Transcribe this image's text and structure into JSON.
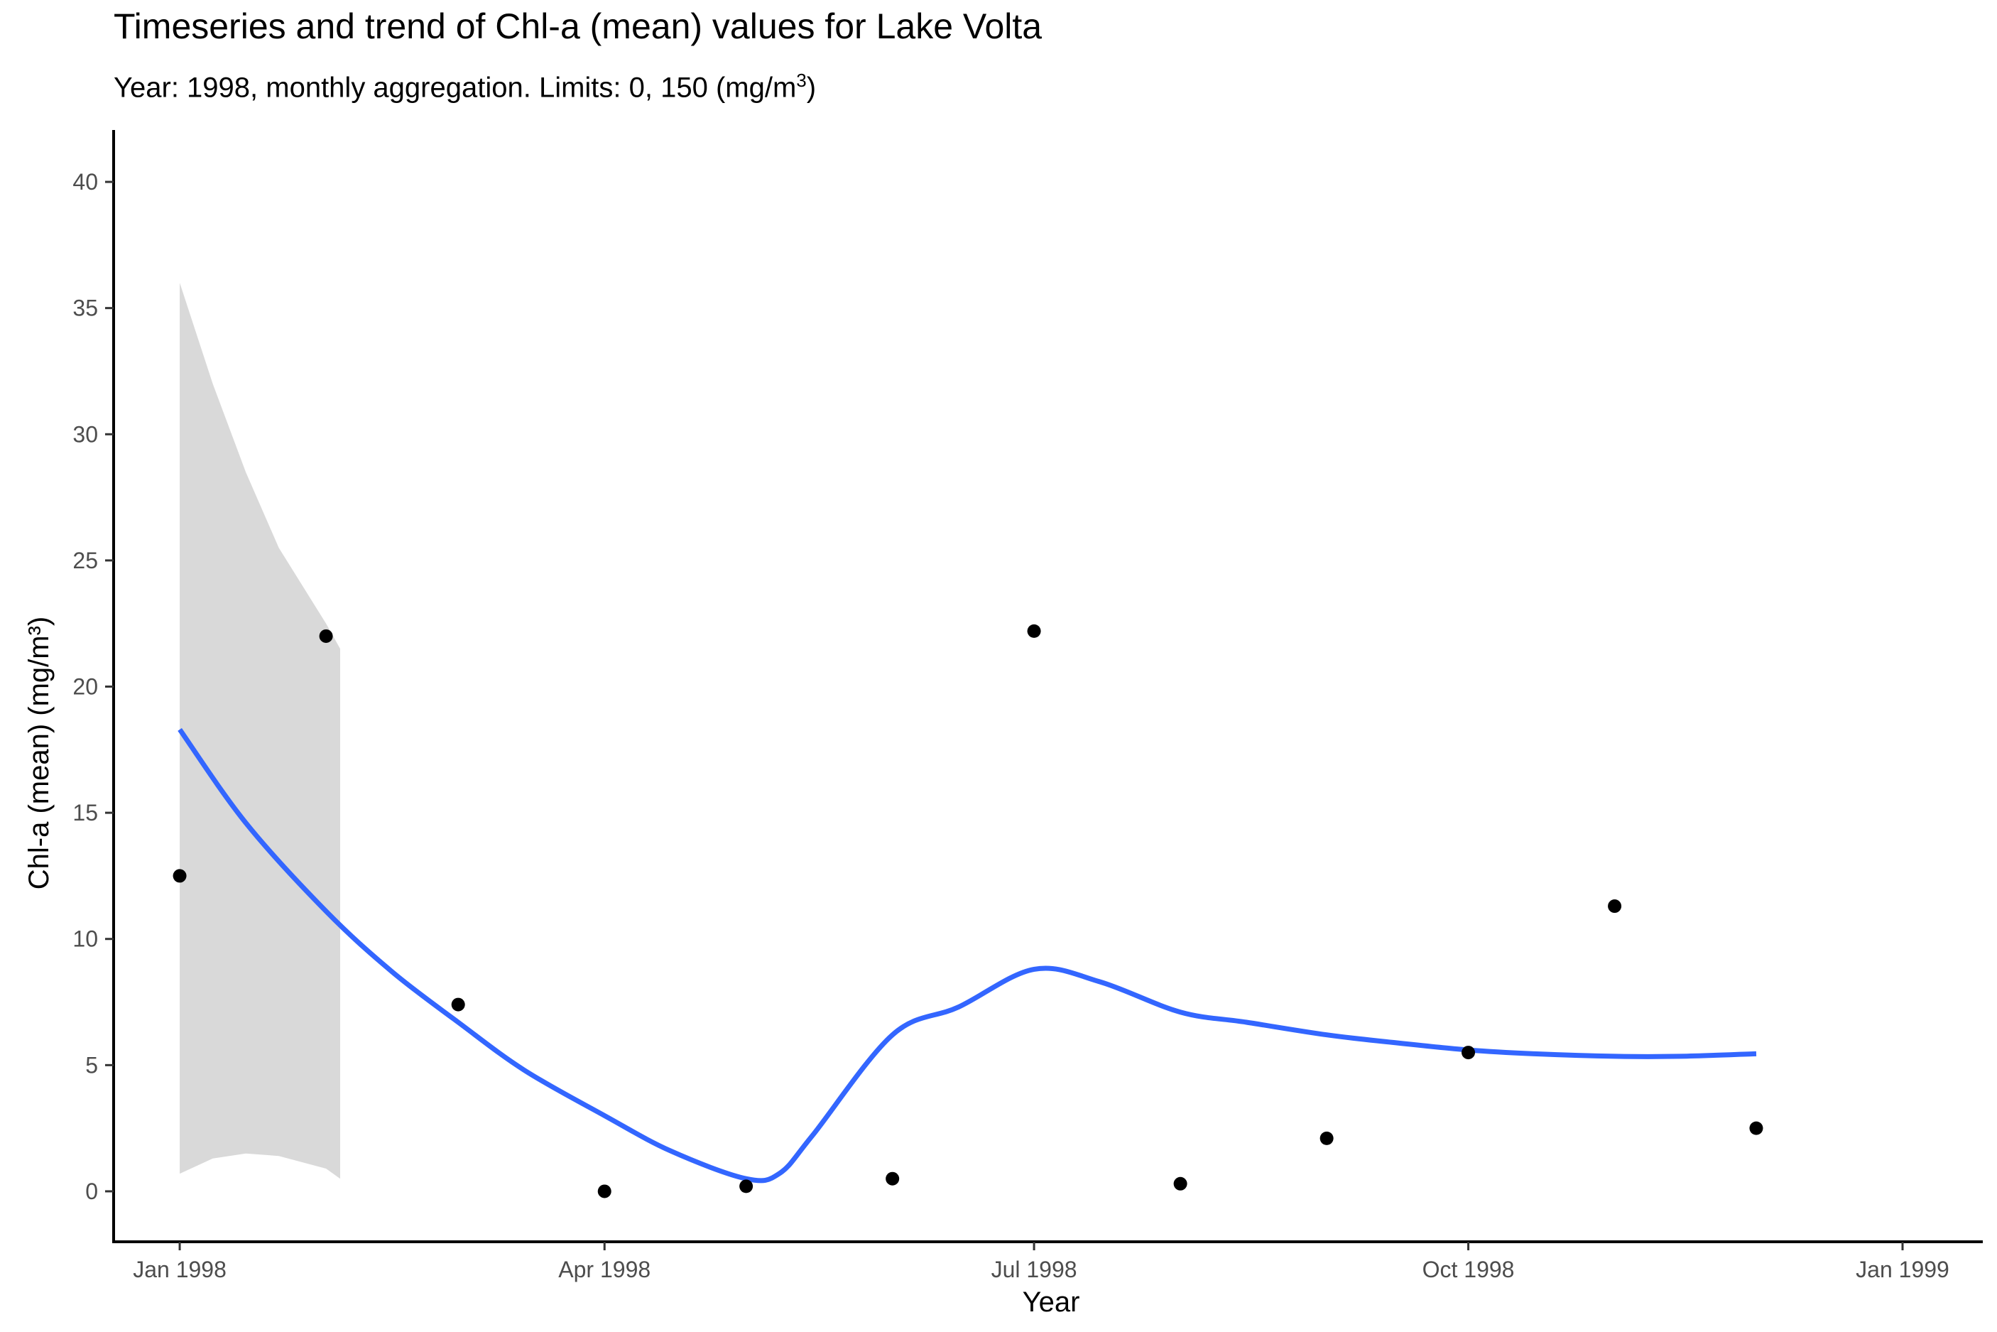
{
  "chart_data": {
    "type": "scatter",
    "title": "Timeseries and trend of Chl-a (mean) values for Lake Volta",
    "subtitle_prefix": "Year: 1998, monthly aggregation. Limits: 0, 150 (mg/m",
    "subtitle_exponent": "3",
    "subtitle_suffix": ")",
    "xlabel": "Year",
    "ylabel": "Chl-a (mean) (mg/m³)",
    "xlim": [
      "1997-12-18",
      "1999-01-18"
    ],
    "ylim": [
      -2,
      42
    ],
    "x_ticks": [
      {
        "date": "1998-01-01",
        "label": "Jan 1998"
      },
      {
        "date": "1998-04-01",
        "label": "Apr 1998"
      },
      {
        "date": "1998-07-01",
        "label": "Jul 1998"
      },
      {
        "date": "1998-10-01",
        "label": "Oct 1998"
      },
      {
        "date": "1999-01-01",
        "label": "Jan 1999"
      }
    ],
    "y_ticks": [
      0,
      5,
      10,
      15,
      20,
      25,
      30,
      35,
      40
    ],
    "grid": false,
    "colors": {
      "points": "#000000",
      "trend": "#3366ff",
      "ribbon": "#d9d9d9",
      "axis": "#000000"
    },
    "series": [
      {
        "kind": "points",
        "x": [
          "1998-01-01",
          "1998-02-01",
          "1998-03-01",
          "1998-04-01",
          "1998-05-01",
          "1998-06-01",
          "1998-07-01",
          "1998-08-01",
          "1998-09-01",
          "1998-10-01",
          "1998-11-01",
          "1998-12-01"
        ],
        "y": [
          12.5,
          22.0,
          7.4,
          0.0,
          0.2,
          0.5,
          22.2,
          0.3,
          2.1,
          5.5,
          11.3,
          2.5
        ]
      },
      {
        "kind": "trend",
        "x": [
          "1998-01-01",
          "1998-01-15",
          "1998-02-01",
          "1998-02-15",
          "1998-03-01",
          "1998-03-15",
          "1998-04-01",
          "1998-04-15",
          "1998-05-01",
          "1998-05-08",
          "1998-05-15",
          "1998-06-01",
          "1998-06-15",
          "1998-07-01",
          "1998-07-15",
          "1998-08-01",
          "1998-08-15",
          "1998-09-01",
          "1998-09-15",
          "1998-10-01",
          "1998-10-15",
          "1998-11-01",
          "1998-11-15",
          "1998-12-01"
        ],
        "y": [
          18.3,
          14.6,
          11.1,
          8.7,
          6.7,
          4.8,
          3.0,
          1.6,
          0.5,
          0.7,
          2.2,
          6.2,
          7.3,
          8.8,
          8.3,
          7.1,
          6.7,
          6.2,
          5.9,
          5.6,
          5.45,
          5.35,
          5.35,
          5.45
        ]
      },
      {
        "kind": "ribbon",
        "x": [
          "1998-01-01",
          "1998-01-08",
          "1998-01-15",
          "1998-01-22",
          "1998-02-01",
          "1998-02-04"
        ],
        "lower": [
          0.7,
          1.3,
          1.5,
          1.4,
          0.9,
          0.5
        ],
        "upper": [
          36.0,
          32.0,
          28.5,
          25.5,
          22.5,
          21.5
        ]
      }
    ]
  }
}
